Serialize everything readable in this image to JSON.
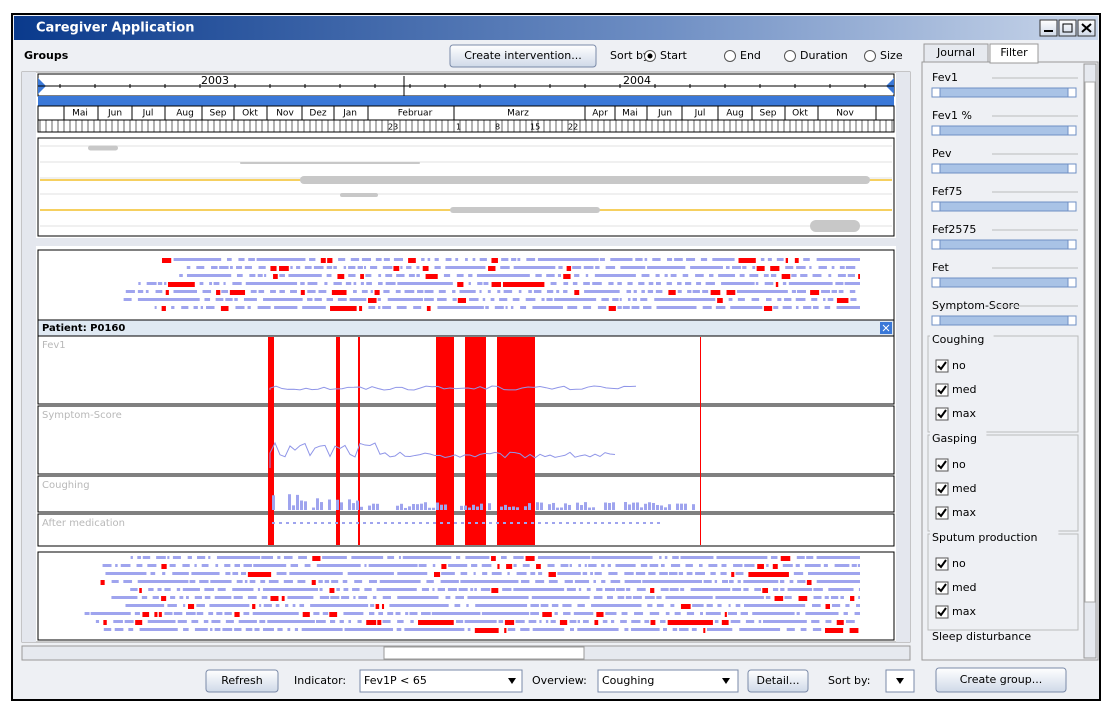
{
  "window": {
    "title": "Caregiver Application"
  },
  "toolbar": {
    "groups_label": "Groups",
    "create_intervention": "Create intervention...",
    "sort_by": "Sort by:",
    "sort_options": [
      "Start",
      "End",
      "Duration",
      "Size"
    ]
  },
  "timeline": {
    "years": [
      "2003",
      "2004"
    ],
    "months": [
      "Mai",
      "Jun",
      "Jul",
      "Aug",
      "Sep",
      "Okt",
      "Nov",
      "Dez",
      "Jan",
      "Februar",
      "Marz",
      "Apr",
      "Mai",
      "Jun",
      "Jul",
      "Aug",
      "Sep",
      "Okt",
      "Nov"
    ],
    "days": [
      "23",
      "1",
      "8",
      "15",
      "22"
    ]
  },
  "patient": {
    "label": "Patient: P0160",
    "tracks": [
      "Fev1",
      "Symptom-Score",
      "Coughing",
      "After medication"
    ]
  },
  "bottom": {
    "refresh": "Refresh",
    "indicator_label": "Indicator:",
    "indicator_value": "Fev1P < 65",
    "overview_label": "Overview:",
    "overview_value": "Coughing",
    "detail": "Detail...",
    "sort_by": "Sort by:"
  },
  "sidebar": {
    "tabs": [
      "Journal",
      "Filter"
    ],
    "sliders": [
      "Fev1",
      "Fev1 %",
      "Pev",
      "Fef75",
      "Fef2575",
      "Fet",
      "Symptom-Score"
    ],
    "checkbox_groups": [
      {
        "title": "Coughing",
        "options": [
          "no",
          "med",
          "max"
        ]
      },
      {
        "title": "Gasping",
        "options": [
          "no",
          "med",
          "max"
        ]
      },
      {
        "title": "Sputum production",
        "options": [
          "no",
          "med",
          "max"
        ]
      }
    ],
    "more_group": "Sleep disturbance",
    "create_group": "Create group..."
  }
}
